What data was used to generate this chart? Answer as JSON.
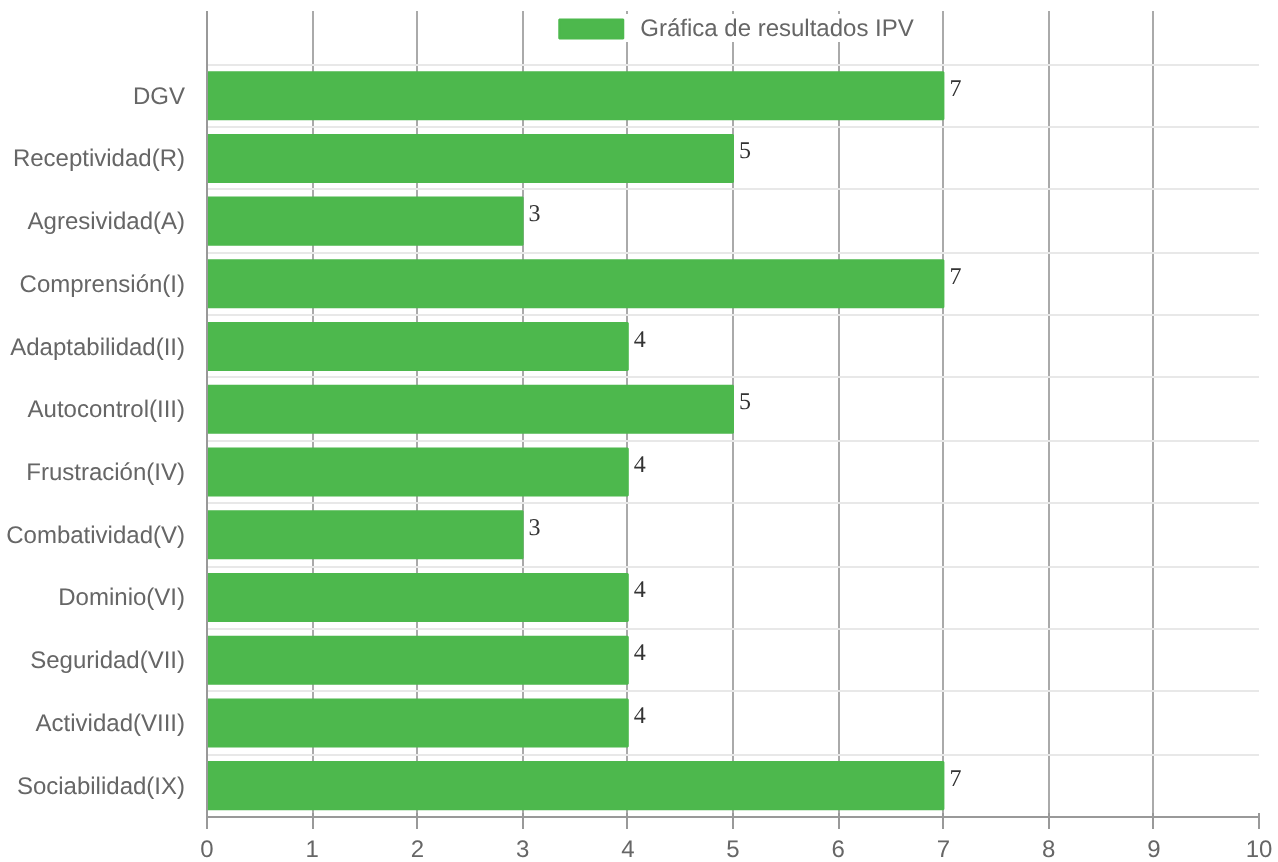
{
  "chart_data": {
    "type": "bar",
    "orientation": "horizontal",
    "categories": [
      "DGV",
      "Receptividad(R)",
      "Agresividad(A)",
      "Comprensión(I)",
      "Adaptabilidad(II)",
      "Autocontrol(III)",
      "Frustración(IV)",
      "Combatividad(V)",
      "Dominio(VI)",
      "Seguridad(VII)",
      "Actividad(VIII)",
      "Sociabilidad(IX)"
    ],
    "series": [
      {
        "name": "Gráfica de resultados IPV",
        "color": "#4db84d",
        "values": [
          7,
          5,
          3,
          7,
          4,
          5,
          4,
          3,
          4,
          4,
          4,
          7
        ]
      }
    ],
    "xlim": [
      0,
      10
    ],
    "xticks": [
      0,
      1,
      2,
      3,
      4,
      5,
      6,
      7,
      8,
      9,
      10
    ],
    "grid": true,
    "legend": "top",
    "data_labels": true
  }
}
